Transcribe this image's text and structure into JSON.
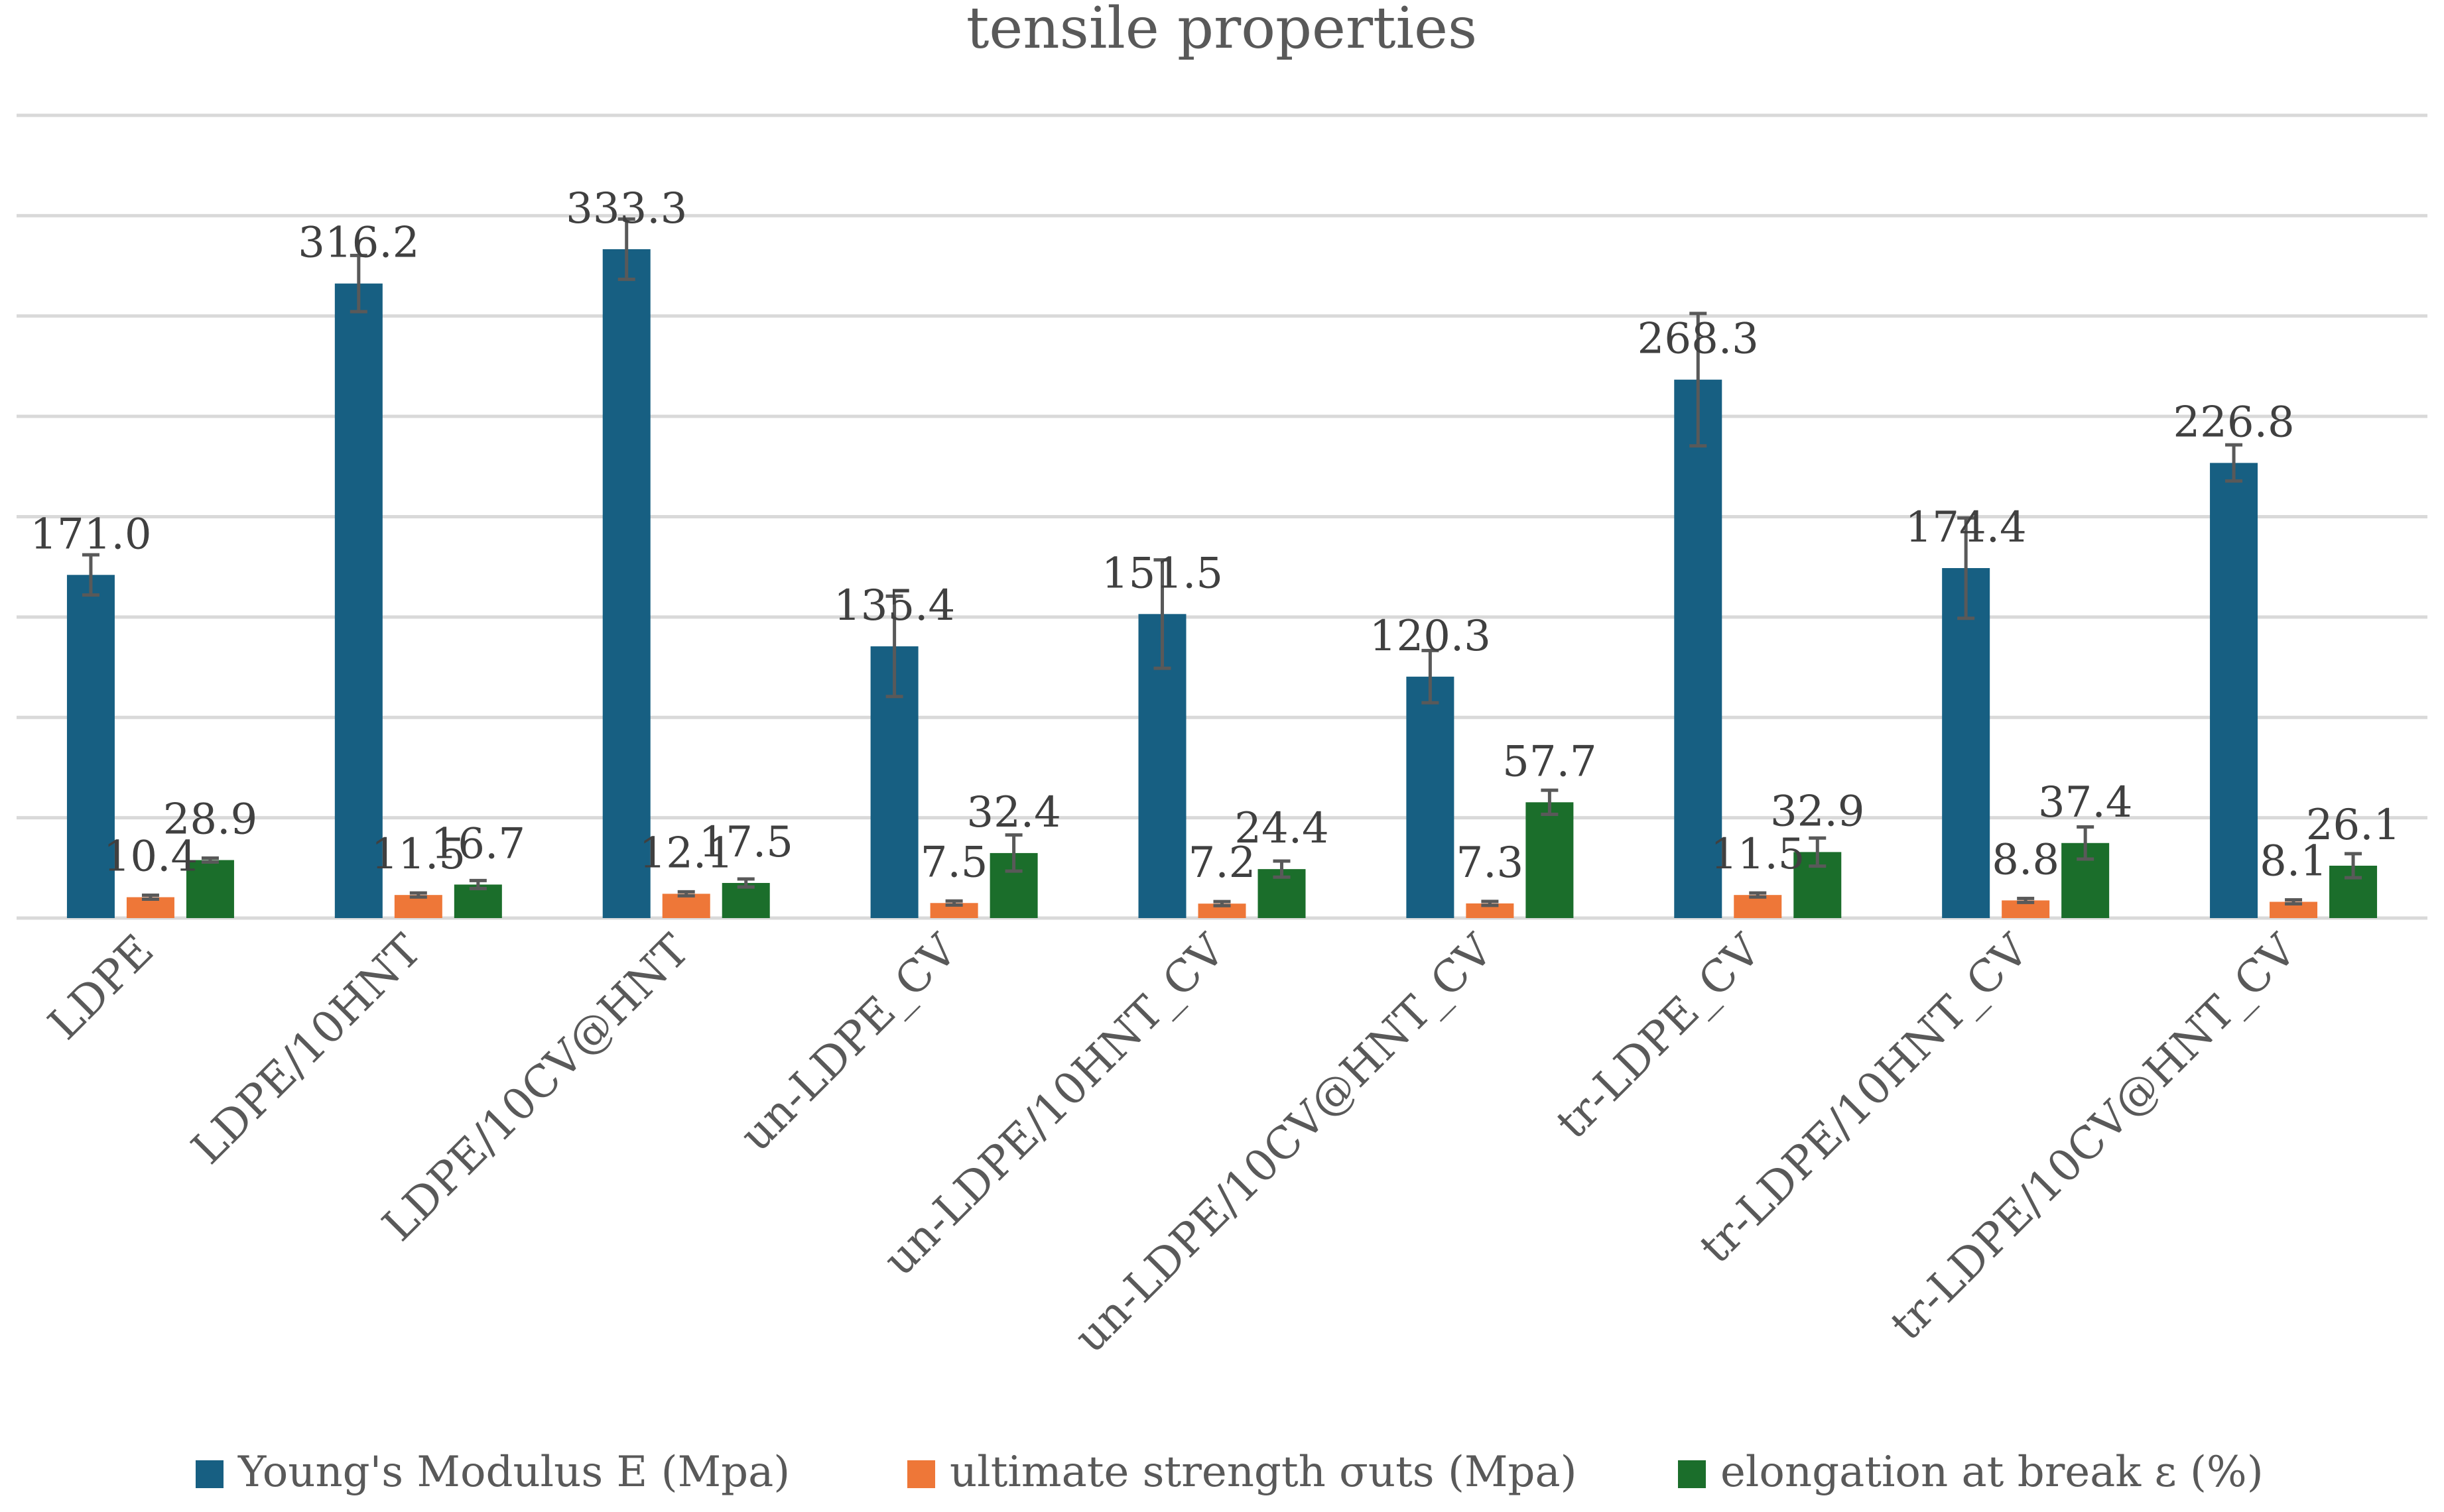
{
  "chart_data": {
    "type": "bar",
    "title": "tensile properties",
    "xlabel": "",
    "ylabel": "",
    "ylim": [
      0,
      400
    ],
    "gridlines": [
      50,
      100,
      150,
      200,
      250,
      300,
      350,
      400
    ],
    "legend_position": "bottom",
    "categories": [
      "LDPE",
      "LDPE/10HNT",
      "LDPE/10CV@HNT",
      "un-LDPE_CV",
      "un-LDPE/10HNT_CV",
      "un-LDPE/10CV@HNT_CV",
      "tr-LDPE_CV",
      "tr-LDPE/10HNT_CV",
      "tr-LDPE/10CV@HNT_CV"
    ],
    "series": [
      {
        "name": "Young's Modulus E (Mpa)",
        "color": "#175f82",
        "values": [
          171.0,
          316.2,
          333.3,
          135.4,
          151.5,
          120.3,
          268.3,
          174.4,
          226.8
        ],
        "labels": [
          "171.0",
          "316.2",
          "333.3",
          "135.4",
          "151.5",
          "120.3",
          "268.3",
          "174.4",
          "226.8"
        ],
        "errors": [
          10,
          14,
          15,
          25,
          27,
          13,
          33,
          25,
          9
        ]
      },
      {
        "name": "ultimate strength σuts (Mpa)",
        "color": "#ee7738",
        "values": [
          10.4,
          11.5,
          12.1,
          7.5,
          7.2,
          7.3,
          11.5,
          8.8,
          8.1
        ],
        "labels": [
          "10.4",
          "11.5",
          "12.1",
          "7.5",
          "7.2",
          "7.3",
          "11.5",
          "8.8",
          "8.1"
        ],
        "errors": [
          1,
          1,
          1,
          1,
          1,
          1,
          1,
          1,
          1
        ]
      },
      {
        "name": "elongation at break  ε (%)",
        "color": "#1b6e2b",
        "values": [
          28.9,
          16.7,
          17.5,
          32.4,
          24.4,
          57.7,
          32.9,
          37.4,
          26.1
        ],
        "labels": [
          "28.9",
          "16.7",
          "17.5",
          "32.4",
          "24.4",
          "57.7",
          "32.9",
          "37.4",
          "26.1"
        ],
        "errors": [
          1,
          2,
          2,
          9,
          4,
          6,
          7,
          8,
          6
        ]
      }
    ]
  }
}
